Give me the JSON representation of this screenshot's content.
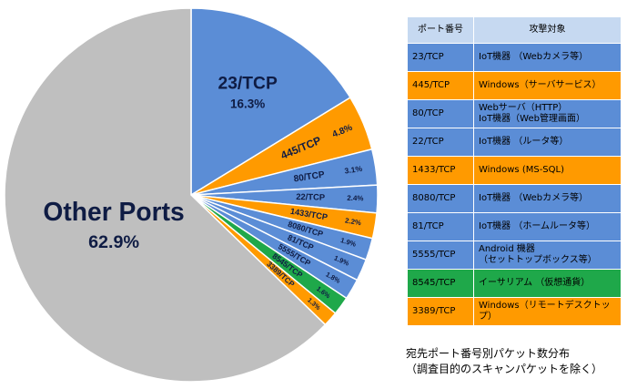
{
  "chart_data": {
    "type": "pie",
    "categories": [
      "23/TCP",
      "445/TCP",
      "80/TCP",
      "22/TCP",
      "1433/TCP",
      "8080/TCP",
      "81/TCP",
      "5555/TCP",
      "8545/TCP",
      "3389/TCP",
      "Other Ports"
    ],
    "values": [
      16.3,
      4.8,
      3.1,
      2.4,
      2.2,
      1.9,
      1.9,
      1.8,
      1.6,
      1.3,
      62.9
    ],
    "value_labels": [
      "16.3%",
      "4.8%",
      "3.1%",
      "2.4%",
      "2.2%",
      "1.9%",
      "1.9%",
      "1.8%",
      "1.6%",
      "1.3%",
      "62.9%"
    ],
    "colors": [
      "#5b8dd6",
      "#ff9a00",
      "#5b8dd6",
      "#5b8dd6",
      "#ff9a00",
      "#5b8dd6",
      "#5b8dd6",
      "#5b8dd6",
      "#1fa84a",
      "#ff9a00",
      "#bfbfbf"
    ]
  },
  "table": {
    "header": [
      "ポート番号",
      "攻撃対象"
    ],
    "rows": [
      {
        "cells": [
          "23/TCP",
          "IoT機器 （Webカメラ等）"
        ],
        "color": "#5b8dd6"
      },
      {
        "cells": [
          "445/TCP",
          "Windows（サーバサービス）"
        ],
        "color": "#ff9a00"
      },
      {
        "cells": [
          "80/TCP",
          "Webサーバ（HTTP）\nIoT機器（Web管理画面）"
        ],
        "color": "#5b8dd6"
      },
      {
        "cells": [
          "22/TCP",
          "IoT機器 （ルータ等）"
        ],
        "color": "#5b8dd6"
      },
      {
        "cells": [
          "1433/TCP",
          "Windows (MS-SQL)"
        ],
        "color": "#ff9a00"
      },
      {
        "cells": [
          "8080/TCP",
          "IoT機器 （Webカメラ等）"
        ],
        "color": "#5b8dd6"
      },
      {
        "cells": [
          "81/TCP",
          "IoT機器 （ホームルータ等）"
        ],
        "color": "#5b8dd6"
      },
      {
        "cells": [
          "5555/TCP",
          "Android 機器\n（セットトップボックス等）"
        ],
        "color": "#5b8dd6"
      },
      {
        "cells": [
          "8545/TCP",
          "イーサリアム （仮想通貨）"
        ],
        "color": "#1fa84a"
      },
      {
        "cells": [
          "3389/TCP",
          "Windows（リモートデスクトップ）"
        ],
        "color": "#ff9a00"
      }
    ],
    "header_color": "#c6d9f1"
  },
  "caption": "宛先ポート番号別パケット数分布\n（調査目的のスキャンパケットを除く）"
}
